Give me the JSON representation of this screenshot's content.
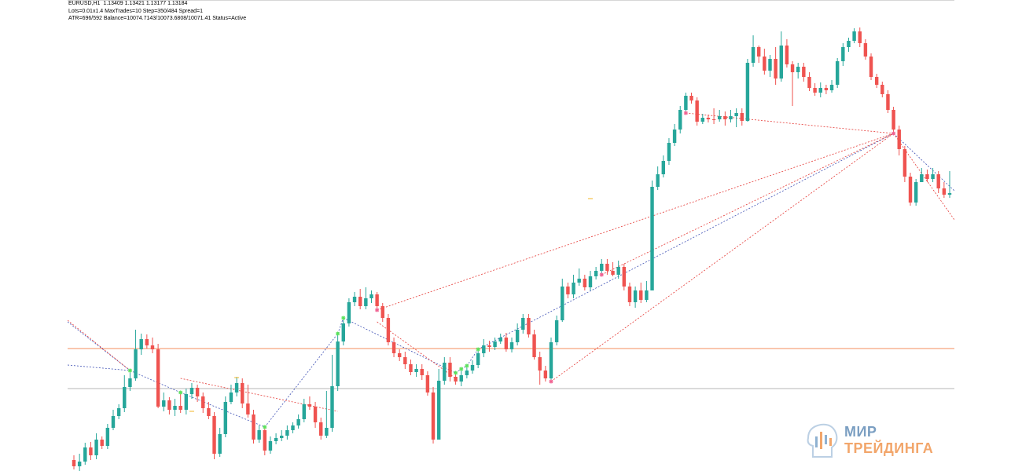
{
  "header": {
    "line1": "EURUSD,H1  1.13409 1.13421 1.13177 1.13184",
    "line2": "Lots=0.01x1.4 MaxTrades=10 Step=350/484 Spread=1",
    "line3": "ATR=696/592 Balance=10074.7143/10073.6808/10071.41 Status=Active"
  },
  "watermark": {
    "line1": "МИР",
    "line2": "ТРЕЙДИНГА"
  },
  "colors": {
    "bull": "#26a69a",
    "bear": "#ef5350",
    "horizontal_orange": "#f6a57d",
    "horizontal_gray": "#b5b5b5",
    "grid_line_red": "#e53935",
    "grid_line_blue": "#3f51b5",
    "marker_green": "#5ae35a",
    "marker_pink": "#f06292"
  },
  "chart_data": {
    "type": "candlestick",
    "symbol": "EURUSD",
    "timeframe": "H1",
    "candles": [
      [
        586,
        594,
        598,
        580
      ],
      [
        594,
        588,
        600,
        578
      ],
      [
        588,
        570,
        592,
        564
      ],
      [
        570,
        580,
        586,
        563
      ],
      [
        580,
        560,
        585,
        552
      ],
      [
        560,
        568,
        572,
        556
      ],
      [
        568,
        545,
        572,
        540
      ],
      [
        545,
        530,
        548,
        522
      ],
      [
        530,
        520,
        534,
        515
      ],
      [
        520,
        493,
        525,
        478
      ],
      [
        493,
        482,
        498,
        472
      ],
      [
        482,
        445,
        485,
        420
      ],
      [
        445,
        432,
        452,
        425
      ],
      [
        432,
        440,
        444,
        426
      ],
      [
        440,
        445,
        450,
        430
      ],
      [
        445,
        518,
        520,
        438
      ],
      [
        518,
        510,
        524,
        500
      ],
      [
        510,
        522,
        528,
        506
      ],
      [
        522,
        517,
        530,
        508
      ],
      [
        517,
        522,
        526,
        500
      ],
      [
        522,
        502,
        528,
        495
      ],
      [
        502,
        494,
        508,
        488
      ],
      [
        494,
        505,
        512,
        490
      ],
      [
        505,
        520,
        526,
        500
      ],
      [
        520,
        530,
        534,
        512
      ],
      [
        530,
        578,
        585,
        525
      ],
      [
        578,
        553,
        582,
        545
      ],
      [
        553,
        512,
        557,
        505
      ],
      [
        512,
        500,
        515,
        490
      ],
      [
        500,
        488,
        505,
        480
      ],
      [
        488,
        514,
        520,
        482
      ],
      [
        514,
        528,
        532,
        490
      ],
      [
        528,
        560,
        565,
        522
      ],
      [
        560,
        548,
        564,
        542
      ],
      [
        548,
        574,
        580,
        544
      ],
      [
        574,
        562,
        578,
        556
      ],
      [
        562,
        558,
        566,
        552
      ],
      [
        558,
        555,
        562,
        548
      ],
      [
        555,
        548,
        560,
        542
      ],
      [
        548,
        542,
        552,
        538
      ],
      [
        542,
        534,
        546,
        528
      ],
      [
        534,
        515,
        538,
        508
      ],
      [
        515,
        518,
        522,
        505
      ],
      [
        518,
        538,
        545,
        512
      ],
      [
        538,
        555,
        560,
        532
      ],
      [
        555,
        545,
        558,
        498
      ],
      [
        545,
        492,
        550,
        452
      ],
      [
        492,
        435,
        498,
        425
      ],
      [
        435,
        412,
        440,
        405
      ],
      [
        412,
        385,
        416,
        380
      ],
      [
        385,
        378,
        390,
        372
      ],
      [
        378,
        390,
        394,
        368
      ],
      [
        390,
        380,
        394,
        366
      ],
      [
        380,
        375,
        386,
        370
      ],
      [
        375,
        390,
        395,
        372
      ],
      [
        390,
        405,
        410,
        386
      ],
      [
        405,
        436,
        440,
        400
      ],
      [
        436,
        450,
        455,
        430
      ],
      [
        450,
        455,
        460,
        445
      ],
      [
        455,
        464,
        470,
        448
      ],
      [
        464,
        474,
        478,
        458
      ],
      [
        474,
        470,
        480,
        464
      ],
      [
        470,
        478,
        484,
        464
      ],
      [
        478,
        500,
        504,
        473
      ],
      [
        500,
        560,
        565,
        493
      ],
      [
        560,
        485,
        560,
        470
      ],
      [
        485,
        462,
        490,
        455
      ],
      [
        462,
        480,
        486,
        455
      ],
      [
        480,
        486,
        490,
        475
      ],
      [
        486,
        478,
        492,
        470
      ],
      [
        478,
        472,
        482,
        466
      ],
      [
        472,
        465,
        476,
        459
      ],
      [
        465,
        450,
        469,
        445
      ],
      [
        450,
        440,
        455,
        432
      ],
      [
        440,
        442,
        448,
        434
      ],
      [
        442,
        435,
        446,
        430
      ],
      [
        435,
        430,
        438,
        425
      ],
      [
        430,
        445,
        448,
        424
      ],
      [
        445,
        436,
        449,
        430
      ],
      [
        436,
        420,
        440,
        412
      ],
      [
        420,
        405,
        425,
        400
      ],
      [
        405,
        426,
        430,
        400
      ],
      [
        426,
        455,
        458,
        420
      ],
      [
        455,
        472,
        490,
        448
      ],
      [
        472,
        482,
        486,
        466
      ],
      [
        482,
        436,
        486,
        430
      ],
      [
        436,
        408,
        440,
        402
      ],
      [
        408,
        365,
        410,
        355
      ],
      [
        365,
        375,
        380,
        360
      ],
      [
        375,
        360,
        380,
        350
      ],
      [
        360,
        355,
        364,
        342
      ],
      [
        355,
        366,
        370,
        350
      ],
      [
        366,
        352,
        370,
        345
      ],
      [
        352,
        345,
        356,
        340
      ],
      [
        345,
        336,
        350,
        330
      ],
      [
        336,
        345,
        350,
        330
      ],
      [
        345,
        350,
        352,
        334
      ],
      [
        350,
        340,
        355,
        332
      ],
      [
        340,
        365,
        370,
        336
      ],
      [
        365,
        385,
        390,
        360
      ],
      [
        385,
        370,
        392,
        365
      ],
      [
        370,
        382,
        386,
        360
      ],
      [
        382,
        370,
        385,
        358
      ],
      [
        370,
        238,
        370,
        230
      ],
      [
        238,
        222,
        242,
        212
      ],
      [
        222,
        205,
        226,
        198
      ],
      [
        205,
        182,
        210,
        176
      ],
      [
        182,
        165,
        186,
        158
      ],
      [
        165,
        140,
        170,
        135
      ],
      [
        140,
        122,
        144,
        118
      ],
      [
        122,
        128,
        132,
        118
      ],
      [
        128,
        155,
        160,
        124
      ],
      [
        155,
        150,
        158,
        145
      ],
      [
        150,
        152,
        156,
        146
      ],
      [
        152,
        152,
        158,
        138
      ],
      [
        152,
        148,
        155,
        140
      ],
      [
        148,
        152,
        160,
        142
      ],
      [
        152,
        148,
        156,
        140
      ],
      [
        148,
        144,
        162,
        138
      ],
      [
        144,
        154,
        160,
        138
      ],
      [
        154,
        80,
        155,
        75
      ],
      [
        80,
        60,
        85,
        45
      ],
      [
        60,
        72,
        80,
        58
      ],
      [
        72,
        90,
        95,
        62
      ],
      [
        90,
        75,
        98,
        70
      ],
      [
        75,
        100,
        108,
        60
      ],
      [
        100,
        58,
        104,
        40
      ],
      [
        58,
        82,
        86,
        50
      ],
      [
        82,
        92,
        135,
        78
      ],
      [
        92,
        85,
        100,
        80
      ],
      [
        85,
        98,
        104,
        80
      ],
      [
        98,
        112,
        116,
        92
      ],
      [
        112,
        118,
        122,
        106
      ],
      [
        118,
        112,
        124,
        105
      ],
      [
        112,
        115,
        120,
        108
      ],
      [
        115,
        108,
        118,
        102
      ],
      [
        108,
        78,
        112,
        74
      ],
      [
        78,
        60,
        84,
        55
      ],
      [
        60,
        52,
        66,
        48
      ],
      [
        52,
        40,
        55,
        36
      ],
      [
        40,
        55,
        60,
        35
      ],
      [
        55,
        72,
        76,
        50
      ],
      [
        72,
        98,
        102,
        68
      ],
      [
        98,
        108,
        112,
        94
      ],
      [
        108,
        120,
        124,
        104
      ],
      [
        120,
        140,
        144,
        115
      ],
      [
        140,
        165,
        170,
        136
      ],
      [
        165,
        190,
        198,
        160
      ],
      [
        190,
        225,
        232,
        186
      ],
      [
        225,
        258,
        262,
        220
      ],
      [
        258,
        232,
        262,
        228
      ],
      [
        232,
        222,
        226,
        214
      ],
      [
        222,
        228,
        232,
        216
      ],
      [
        228,
        222,
        232,
        214
      ],
      [
        222,
        240,
        246,
        218
      ],
      [
        240,
        248,
        252,
        232
      ],
      [
        248,
        246,
        252,
        218
      ]
    ],
    "markers": [
      {
        "candle": 10,
        "kind": "green"
      },
      {
        "candle": 19,
        "kind": "green"
      },
      {
        "candle": 34,
        "kind": "green"
      },
      {
        "candle": 47,
        "kind": "green"
      },
      {
        "candle": 48,
        "kind": "green"
      },
      {
        "candle": 68,
        "kind": "green"
      },
      {
        "candle": 69,
        "kind": "green"
      },
      {
        "candle": 70,
        "kind": "green"
      },
      {
        "candle": 72,
        "kind": "green"
      },
      {
        "candle": 85,
        "kind": "pink"
      },
      {
        "candle": 94,
        "kind": "pink"
      },
      {
        "candle": 109,
        "kind": "pink"
      },
      {
        "candle": 146,
        "kind": "pink"
      },
      {
        "candle": 54,
        "kind": "pink"
      }
    ],
    "horizontal_levels": [
      {
        "price": 444,
        "color": "orange"
      },
      {
        "price": 495,
        "color": "gray"
      }
    ],
    "price_scale": {
      "top": 0,
      "bottom": 600
    }
  }
}
